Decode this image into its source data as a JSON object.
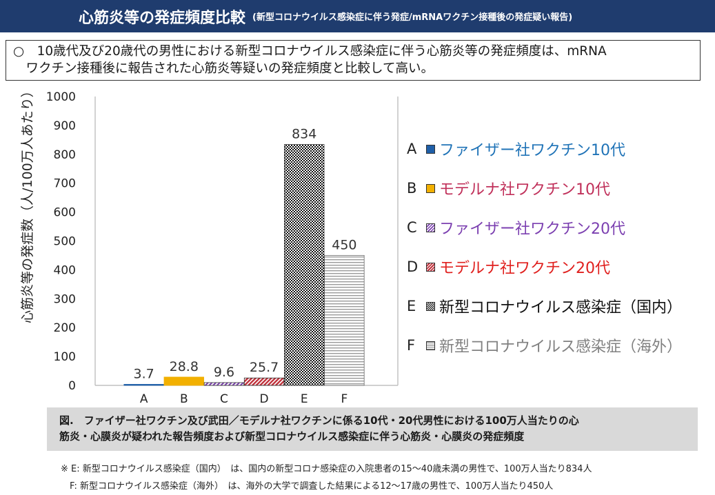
{
  "header": {
    "title": "心筋炎等の発症頻度比較",
    "subtitle": "(新型コロナウイルス感染症に伴う発症/mRNAワクチン接種後の発症疑い報告)"
  },
  "summary": {
    "line1": "○　10歳代及び20歳代の男性における新型コロナウイルス感染症に伴う心筋炎等の発症頻度は、mRNA",
    "line2": "　ワクチン接種後に報告された心筋炎等疑いの発症頻度と比較して高い。"
  },
  "chart_data": {
    "type": "bar",
    "ylabel": "心筋炎等の発症数（人/100万人あたり）",
    "xlabel": "",
    "ylim": [
      0,
      1000
    ],
    "yticks": [
      0,
      100,
      200,
      300,
      400,
      500,
      600,
      700,
      800,
      900,
      1000
    ],
    "categories": [
      "A",
      "B",
      "C",
      "D",
      "E",
      "F"
    ],
    "values": [
      3.7,
      28.8,
      9.6,
      25.7,
      834,
      450
    ],
    "value_labels": [
      "3.7",
      "28.8",
      "9.6",
      "25.7",
      "834",
      "450"
    ],
    "grid": false,
    "legend_position": "right",
    "legend": [
      {
        "letter": "A",
        "label": "ファイザー社ワクチン10代",
        "text_color": "#1f73b7",
        "fill": "#1f5fa8",
        "pattern": "solid"
      },
      {
        "letter": "B",
        "label": "モデルナ社ワクチン10代",
        "text_color": "#c0305a",
        "fill": "#f2b000",
        "pattern": "solid"
      },
      {
        "letter": "C",
        "label": "ファイザー社ワクチン20代",
        "text_color": "#7b3fb0",
        "fill": "#7b3fb0",
        "pattern": "diag-light"
      },
      {
        "letter": "D",
        "label": "モデルナ社ワクチン20代",
        "text_color": "#e0201e",
        "fill": "#c0303a",
        "pattern": "diag-dense"
      },
      {
        "letter": "E",
        "label": "新型コロナウイルス感染症（国内）",
        "text_color": "#111111",
        "fill": "#111111",
        "pattern": "checker"
      },
      {
        "letter": "F",
        "label": "新型コロナウイルス感染症（海外）",
        "text_color": "#808080",
        "fill": "#777777",
        "pattern": "hlines"
      }
    ]
  },
  "caption": {
    "line1": "図.　ファイザー社ワクチン及び武田／モデルナ社ワクチンに係る10代・20代男性における100万人当たりの心",
    "line2": "筋炎・心膜炎が疑われた報告頻度および新型コロナウイルス感染症に伴う心筋炎・心膜炎の発症頻度"
  },
  "notes": {
    "line1": "※ E: 新型コロナウイルス感染症（国内）　は、国内の新型コロナ感染症の入院患者の15～40歳未満の男性で、100万人当たり834人",
    "line2": "　F: 新型コロナウイルス感染症（海外）　は、海外の大学で調査した結果による12～17歳の男性で、100万人当たり450人"
  }
}
